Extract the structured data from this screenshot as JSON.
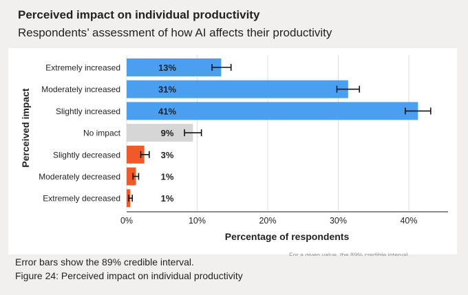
{
  "title": "Perceived impact on individual productivity",
  "subtitle": "Respondents’ assessment of how AI affects their productivity",
  "note": "Error bars show the 89% credible interval.",
  "caption": "Figure 24: Perceived impact on individual productivity",
  "footer_fragment": "For a given value, the 89% credible interval",
  "colors": {
    "increased": "#4a9ff0",
    "no_impact": "#d6d6d6",
    "decreased": "#f05a28",
    "background": "#f1f0ee"
  },
  "chart_data": {
    "type": "bar",
    "orientation": "horizontal",
    "xlabel": "Percentage of respondents",
    "ylabel": "Perceived impact",
    "xlim": [
      0,
      45
    ],
    "x_ticks": [
      0,
      10,
      20,
      30,
      40
    ],
    "x_tick_labels": [
      "0%",
      "10%",
      "20%",
      "30%",
      "40%"
    ],
    "grid": "vertical",
    "categories": [
      "Extremely increased",
      "Moderately increased",
      "Slightly increased",
      "No impact",
      "Slightly decreased",
      "Moderately decreased",
      "Extremely decreased"
    ],
    "values": [
      13.4,
      31.4,
      41.3,
      9.4,
      2.5,
      1.3,
      0.5
    ],
    "value_labels": [
      "13%",
      "31%",
      "41%",
      "9%",
      "3%",
      "1%",
      "1%"
    ],
    "error_low": [
      12.1,
      29.8,
      39.5,
      8.2,
      2.0,
      0.9,
      0.3
    ],
    "error_high": [
      14.8,
      33.0,
      43.1,
      10.6,
      3.2,
      1.7,
      0.8
    ],
    "bar_colors": [
      "increased",
      "increased",
      "increased",
      "no_impact",
      "decreased",
      "decreased",
      "decreased"
    ]
  }
}
